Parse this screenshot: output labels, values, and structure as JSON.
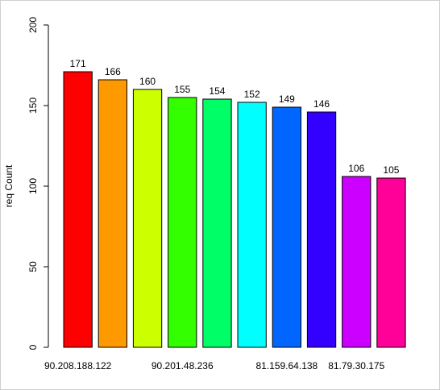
{
  "chart_data": {
    "type": "bar",
    "title": "",
    "xlabel": "",
    "ylabel": "req Count",
    "ylim": [
      0,
      200
    ],
    "yticks": [
      0,
      50,
      100,
      150,
      200
    ],
    "grid": false,
    "legend": "none",
    "categories": [
      "90.208.188.122",
      "",
      "",
      "90.201.48.236",
      "",
      "",
      "81.159.64.138",
      "",
      "81.79.30.175",
      ""
    ],
    "values": [
      171,
      166,
      160,
      155,
      154,
      152,
      149,
      146,
      106,
      105
    ],
    "colors": [
      "#FF0000",
      "#FF9900",
      "#CCFF00",
      "#33FF00",
      "#00FF66",
      "#00FFFF",
      "#0066FF",
      "#3300FF",
      "#CC00FF",
      "#FF0099"
    ]
  }
}
